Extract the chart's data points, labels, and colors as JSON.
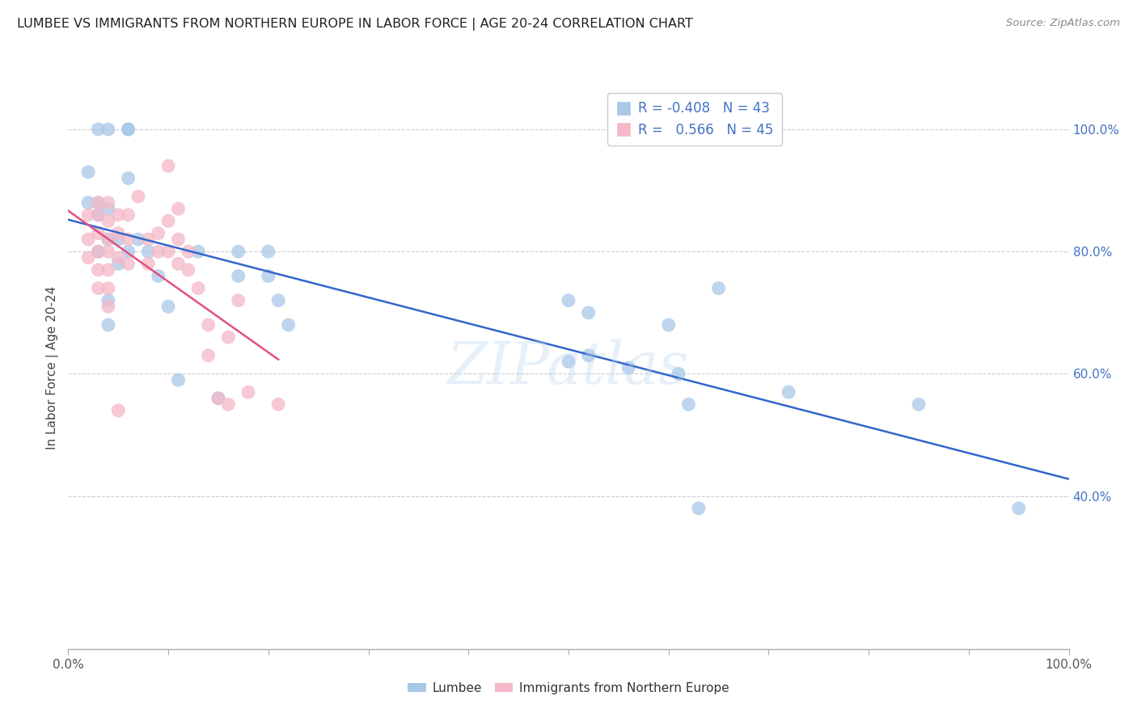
{
  "title": "LUMBEE VS IMMIGRANTS FROM NORTHERN EUROPE IN LABOR FORCE | AGE 20-24 CORRELATION CHART",
  "source": "Source: ZipAtlas.com",
  "ylabel": "In Labor Force | Age 20-24",
  "watermark": "ZIPatlas",
  "legend_label1": "Lumbee",
  "legend_label2": "Immigrants from Northern Europe",
  "r1": -0.408,
  "n1": 43,
  "r2": 0.566,
  "n2": 45,
  "color_blue": "#a8c8e8",
  "color_pink": "#f4b8c8",
  "line_blue": "#3366cc",
  "line_pink": "#e05080",
  "blue_x": [
    0.02,
    0.02,
    0.03,
    0.03,
    0.04,
    0.04,
    0.05,
    0.05,
    0.06,
    0.06,
    0.07,
    0.08,
    0.09,
    0.1,
    0.11,
    0.13,
    0.15,
    0.17,
    0.17,
    0.2,
    0.2,
    0.21,
    0.22,
    0.03,
    0.04,
    0.04,
    0.5,
    0.52,
    0.52,
    0.56,
    0.62,
    0.65,
    0.72,
    0.85,
    0.6,
    0.61,
    0.5,
    0.63,
    0.95,
    0.03,
    0.04,
    0.06,
    0.06
  ],
  "blue_y": [
    0.93,
    0.88,
    0.88,
    0.86,
    0.87,
    0.82,
    0.82,
    0.78,
    0.92,
    0.8,
    0.82,
    0.8,
    0.76,
    0.71,
    0.59,
    0.8,
    0.56,
    0.8,
    0.76,
    0.8,
    0.76,
    0.72,
    0.68,
    0.8,
    0.72,
    0.68,
    0.72,
    0.7,
    0.63,
    0.61,
    0.55,
    0.74,
    0.57,
    0.55,
    0.68,
    0.6,
    0.62,
    0.38,
    0.38,
    1.0,
    1.0,
    1.0,
    1.0
  ],
  "pink_x": [
    0.02,
    0.02,
    0.02,
    0.03,
    0.03,
    0.03,
    0.03,
    0.03,
    0.03,
    0.04,
    0.04,
    0.04,
    0.04,
    0.04,
    0.04,
    0.04,
    0.05,
    0.05,
    0.05,
    0.05,
    0.06,
    0.06,
    0.06,
    0.07,
    0.08,
    0.08,
    0.09,
    0.09,
    0.1,
    0.1,
    0.1,
    0.11,
    0.11,
    0.11,
    0.12,
    0.12,
    0.13,
    0.14,
    0.14,
    0.15,
    0.16,
    0.16,
    0.17,
    0.18,
    0.21
  ],
  "pink_y": [
    0.86,
    0.82,
    0.79,
    0.88,
    0.86,
    0.83,
    0.8,
    0.77,
    0.74,
    0.88,
    0.85,
    0.82,
    0.8,
    0.77,
    0.74,
    0.71,
    0.86,
    0.83,
    0.79,
    0.54,
    0.86,
    0.82,
    0.78,
    0.89,
    0.82,
    0.78,
    0.83,
    0.8,
    0.94,
    0.85,
    0.8,
    0.87,
    0.82,
    0.78,
    0.8,
    0.77,
    0.74,
    0.68,
    0.63,
    0.56,
    0.66,
    0.55,
    0.72,
    0.57,
    0.55
  ]
}
